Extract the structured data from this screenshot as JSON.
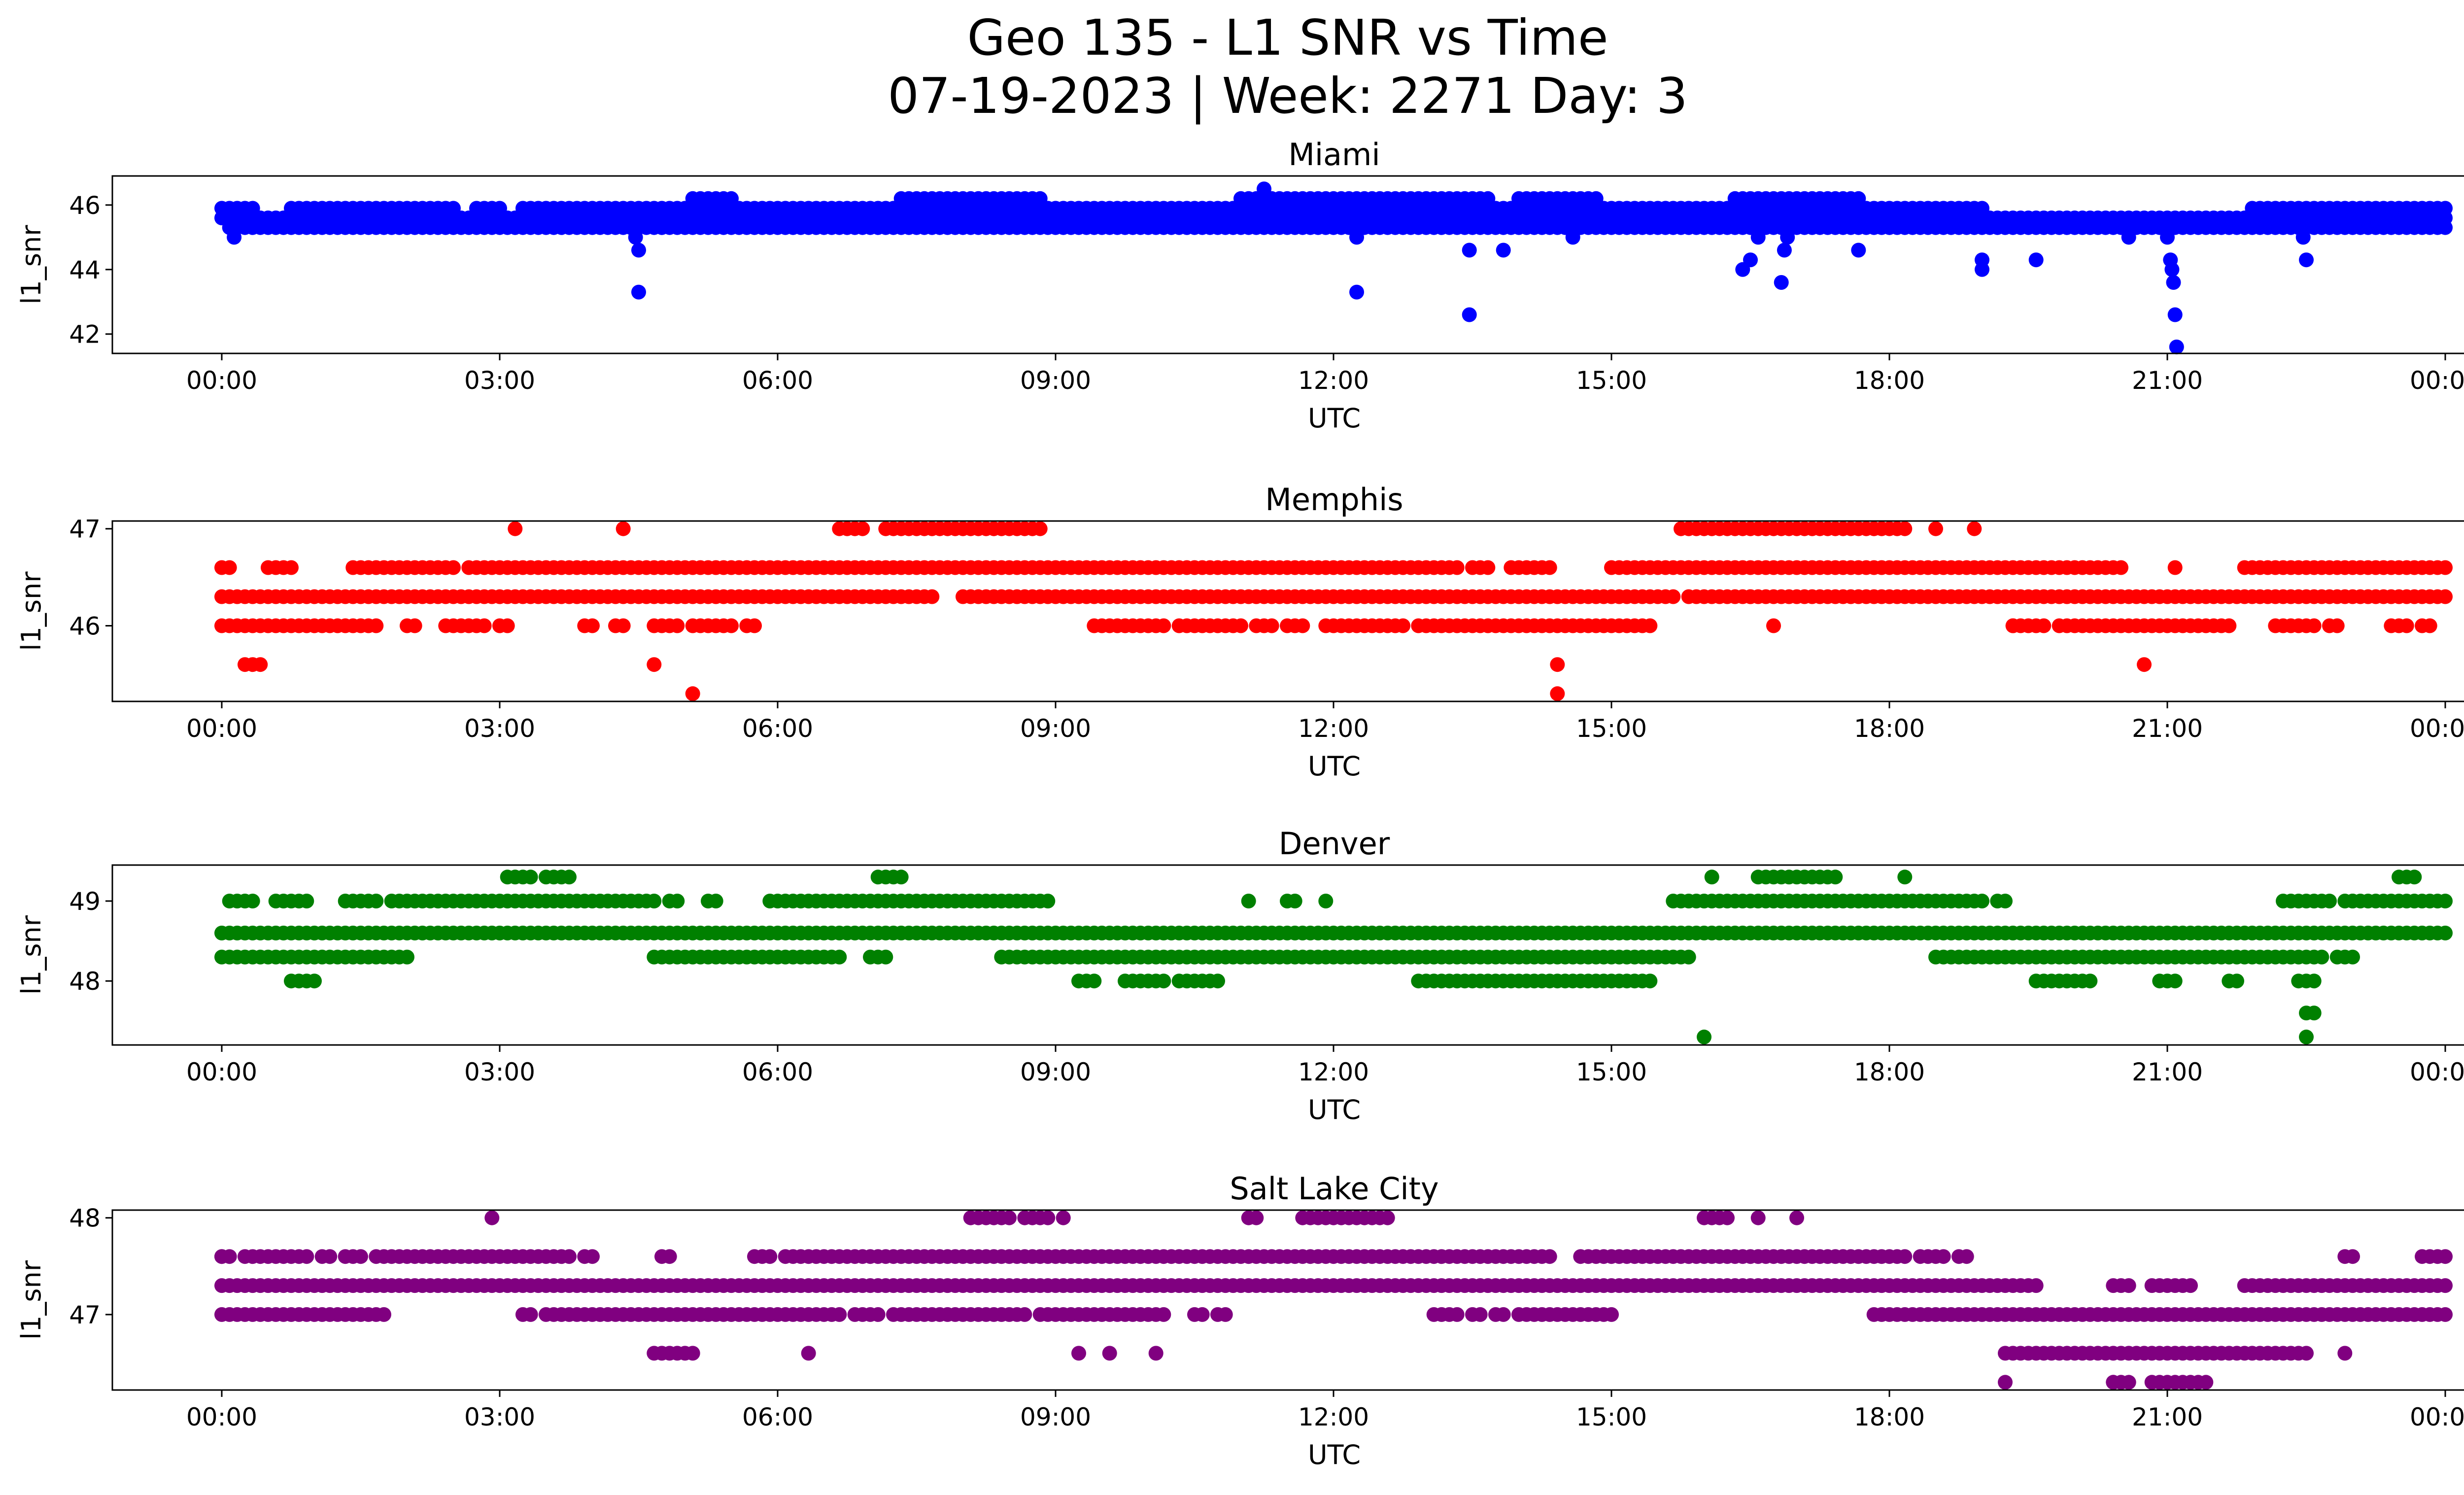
{
  "figure": {
    "title_line1": "Geo 135 - L1 SNR vs Time",
    "title_line2": "07-19-2023 | Week: 2271 Day: 3"
  },
  "chart_data": [
    {
      "type": "scatter",
      "title": "Miami",
      "xlabel": "UTC",
      "ylabel": "l1_snr",
      "color": "#0000ff",
      "xlim": [
        "2023-07-19T00:00",
        "2023-07-20T00:00"
      ],
      "xticks": [
        "00:00",
        "03:00",
        "06:00",
        "09:00",
        "12:00",
        "15:00",
        "18:00",
        "21:00",
        "00:00"
      ],
      "ylim": [
        41.4,
        46.9
      ],
      "yticks": [
        42,
        44,
        46
      ],
      "bands": [
        {
          "y": 45.3,
          "ranges": [
            [
              "00:05",
              "24:00"
            ]
          ]
        },
        {
          "y": 45.6,
          "ranges": [
            [
              "00:00",
              "24:00"
            ]
          ]
        },
        {
          "y": 45.9,
          "ranges": [
            [
              "00:00",
              "00:20"
            ],
            [
              "00:45",
              "02:30"
            ],
            [
              "02:45",
              "03:00"
            ],
            [
              "03:15",
              "19:00"
            ],
            [
              "21:55",
              "24:00"
            ]
          ]
        },
        {
          "y": 46.2,
          "ranges": [
            [
              "05:05",
              "05:30"
            ],
            [
              "07:20",
              "08:50"
            ],
            [
              "11:00",
              "13:40"
            ],
            [
              "14:00",
              "14:50"
            ],
            [
              "16:20",
              "17:40"
            ]
          ]
        }
      ],
      "outliers": [
        {
          "x": "00:08",
          "y": 45.0
        },
        {
          "x": "04:30",
          "y": 44.6
        },
        {
          "x": "04:30",
          "y": 43.3
        },
        {
          "x": "04:28",
          "y": 45.0
        },
        {
          "x": "04:45",
          "y": 45.3
        },
        {
          "x": "11:15",
          "y": 46.5
        },
        {
          "x": "12:15",
          "y": 45.0
        },
        {
          "x": "12:15",
          "y": 43.3
        },
        {
          "x": "13:28",
          "y": 44.6
        },
        {
          "x": "13:28",
          "y": 42.6
        },
        {
          "x": "13:50",
          "y": 44.6
        },
        {
          "x": "14:35",
          "y": 45.0
        },
        {
          "x": "16:25",
          "y": 44.0
        },
        {
          "x": "16:30",
          "y": 44.3
        },
        {
          "x": "16:35",
          "y": 45.0
        },
        {
          "x": "16:50",
          "y": 43.6
        },
        {
          "x": "16:52",
          "y": 44.6
        },
        {
          "x": "16:54",
          "y": 45.0
        },
        {
          "x": "17:40",
          "y": 44.6
        },
        {
          "x": "19:00",
          "y": 44.3
        },
        {
          "x": "19:00",
          "y": 44.0
        },
        {
          "x": "19:35",
          "y": 44.3
        },
        {
          "x": "20:35",
          "y": 45.0
        },
        {
          "x": "21:00",
          "y": 45.0
        },
        {
          "x": "21:02",
          "y": 44.3
        },
        {
          "x": "21:03",
          "y": 44.0
        },
        {
          "x": "21:04",
          "y": 43.6
        },
        {
          "x": "21:05",
          "y": 42.6
        },
        {
          "x": "21:06",
          "y": 41.6
        },
        {
          "x": "22:30",
          "y": 44.3
        },
        {
          "x": "22:28",
          "y": 45.0
        },
        {
          "x": "22:25",
          "y": 45.6
        },
        {
          "x": "18:00",
          "y": 45.3
        }
      ]
    },
    {
      "type": "scatter",
      "title": "Memphis",
      "xlabel": "UTC",
      "ylabel": "l1_snr",
      "color": "#ff0000",
      "xlim": [
        "2023-07-19T00:00",
        "2023-07-20T00:00"
      ],
      "xticks": [
        "00:00",
        "03:00",
        "06:00",
        "09:00",
        "12:00",
        "15:00",
        "18:00",
        "21:00",
        "00:00"
      ],
      "ylim": [
        45.22,
        47.08
      ],
      "yticks": [
        46,
        47
      ],
      "bands": [
        {
          "y": 46.3,
          "ranges": [
            [
              "00:00",
              "07:40"
            ],
            [
              "08:00",
              "15:40"
            ],
            [
              "15:50",
              "24:00"
            ]
          ]
        },
        {
          "y": 46.6,
          "ranges": [
            [
              "00:00",
              "00:05"
            ],
            [
              "00:30",
              "00:45"
            ],
            [
              "01:25",
              "02:30"
            ],
            [
              "02:40",
              "13:20"
            ],
            [
              "13:30",
              "13:40"
            ],
            [
              "13:55",
              "14:20"
            ],
            [
              "15:00",
              "20:30"
            ],
            [
              "21:50",
              "24:00"
            ]
          ]
        },
        {
          "y": 46.0,
          "ranges": [
            [
              "00:00",
              "01:40"
            ],
            [
              "02:00",
              "02:05"
            ],
            [
              "02:25",
              "02:50"
            ],
            [
              "03:00",
              "03:05"
            ],
            [
              "03:55",
              "04:00"
            ],
            [
              "04:15",
              "04:20"
            ],
            [
              "04:40",
              "04:55"
            ],
            [
              "05:05",
              "05:30"
            ],
            [
              "05:40",
              "05:45"
            ],
            [
              "09:25",
              "10:10"
            ],
            [
              "10:20",
              "11:00"
            ],
            [
              "11:10",
              "11:20"
            ],
            [
              "11:30",
              "11:40"
            ],
            [
              "11:55",
              "12:35"
            ],
            [
              "12:40",
              "12:45"
            ],
            [
              "12:55",
              "15:25"
            ],
            [
              "19:20",
              "19:40"
            ],
            [
              "19:50",
              "19:55"
            ],
            [
              "20:00",
              "20:50"
            ],
            [
              "20:55",
              "21:40"
            ],
            [
              "22:10",
              "22:15"
            ],
            [
              "22:20",
              "22:35"
            ],
            [
              "22:45",
              "22:50"
            ],
            [
              "23:25",
              "23:35"
            ],
            [
              "23:45",
              "23:50"
            ]
          ]
        },
        {
          "y": 47.0,
          "ranges": [
            [
              "06:40",
              "06:55"
            ],
            [
              "07:10",
              "08:50"
            ],
            [
              "15:45",
              "18:10"
            ]
          ]
        }
      ],
      "outliers": [
        {
          "x": "00:15",
          "y": 45.6
        },
        {
          "x": "00:20",
          "y": 45.6
        },
        {
          "x": "00:25",
          "y": 45.6
        },
        {
          "x": "03:10",
          "y": 47.0
        },
        {
          "x": "04:20",
          "y": 47.0
        },
        {
          "x": "04:40",
          "y": 45.6
        },
        {
          "x": "05:05",
          "y": 45.3
        },
        {
          "x": "14:25",
          "y": 45.6
        },
        {
          "x": "14:25",
          "y": 45.3
        },
        {
          "x": "16:45",
          "y": 46.0
        },
        {
          "x": "18:30",
          "y": 47.0
        },
        {
          "x": "18:55",
          "y": 47.0
        },
        {
          "x": "20:45",
          "y": 45.6
        },
        {
          "x": "21:05",
          "y": 46.6
        },
        {
          "x": "19:20",
          "y": 46.0
        },
        {
          "x": "16:30",
          "y": 46.3
        }
      ]
    },
    {
      "type": "scatter",
      "title": "Denver",
      "xlabel": "UTC",
      "ylabel": "l1_snr",
      "color": "#008000",
      "xlim": [
        "2023-07-19T00:00",
        "2023-07-20T00:00"
      ],
      "xticks": [
        "00:00",
        "03:00",
        "06:00",
        "09:00",
        "12:00",
        "15:00",
        "18:00",
        "21:00",
        "00:00"
      ],
      "ylim": [
        47.2,
        49.45
      ],
      "yticks": [
        48,
        49
      ],
      "bands": [
        {
          "y": 48.6,
          "ranges": [
            [
              "00:00",
              "24:00"
            ]
          ]
        },
        {
          "y": 48.3,
          "ranges": [
            [
              "00:00",
              "02:00"
            ],
            [
              "04:40",
              "06:40"
            ],
            [
              "07:00",
              "07:10"
            ],
            [
              "08:25",
              "08:40"
            ],
            [
              "08:45",
              "15:50"
            ],
            [
              "18:30",
              "22:40"
            ],
            [
              "22:50",
              "23:00"
            ]
          ]
        },
        {
          "y": 49.0,
          "ranges": [
            [
              "00:05",
              "00:20"
            ],
            [
              "00:35",
              "00:55"
            ],
            [
              "01:20",
              "01:40"
            ],
            [
              "01:50",
              "04:40"
            ],
            [
              "04:50",
              "04:55"
            ],
            [
              "05:15",
              "05:20"
            ],
            [
              "05:55",
              "06:25"
            ],
            [
              "06:25",
              "08:55"
            ],
            [
              "15:40",
              "19:00"
            ],
            [
              "19:10",
              "19:15"
            ],
            [
              "22:15",
              "22:20"
            ],
            [
              "22:25",
              "22:35"
            ],
            [
              "22:40",
              "22:45"
            ],
            [
              "22:55",
              "23:00"
            ],
            [
              "23:00",
              "24:00"
            ]
          ]
        },
        {
          "y": 48.0,
          "ranges": [
            [
              "00:45",
              "01:00"
            ],
            [
              "09:20",
              "09:25"
            ],
            [
              "09:45",
              "10:10"
            ],
            [
              "10:20",
              "10:45"
            ],
            [
              "12:55",
              "13:20"
            ],
            [
              "13:25",
              "15:25"
            ],
            [
              "19:35",
              "19:55"
            ],
            [
              "20:00",
              "20:10"
            ],
            [
              "20:55",
              "21:05"
            ],
            [
              "21:40",
              "21:45"
            ],
            [
              "22:25",
              "22:35"
            ]
          ]
        },
        {
          "y": 49.3,
          "ranges": [
            [
              "03:05",
              "03:20"
            ],
            [
              "03:30",
              "03:45"
            ],
            [
              "07:05",
              "07:20"
            ],
            [
              "16:35",
              "17:25"
            ],
            [
              "23:30",
              "23:40"
            ]
          ]
        }
      ],
      "outliers": [
        {
          "x": "11:05",
          "y": 49.0
        },
        {
          "x": "11:30",
          "y": 49.0
        },
        {
          "x": "11:35",
          "y": 49.0
        },
        {
          "x": "11:55",
          "y": 49.0
        },
        {
          "x": "16:00",
          "y": 47.3
        },
        {
          "x": "16:05",
          "y": 49.3
        },
        {
          "x": "18:10",
          "y": 49.3
        },
        {
          "x": "22:30",
          "y": 47.6
        },
        {
          "x": "22:35",
          "y": 47.6
        },
        {
          "x": "22:30",
          "y": 47.3
        },
        {
          "x": "09:15",
          "y": 48.0
        }
      ]
    },
    {
      "type": "scatter",
      "title": "Salt Lake City",
      "xlabel": "UTC",
      "ylabel": "l1_snr",
      "color": "#800080",
      "xlim": [
        "2023-07-19T00:00",
        "2023-07-20T00:00"
      ],
      "xticks": [
        "00:00",
        "03:00",
        "06:00",
        "09:00",
        "12:00",
        "15:00",
        "18:00",
        "21:00",
        "00:00"
      ],
      "ylim": [
        46.22,
        48.08
      ],
      "yticks": [
        47,
        48
      ],
      "bands": [
        {
          "y": 47.3,
          "ranges": [
            [
              "00:00",
              "19:20"
            ],
            [
              "19:25",
              "19:35"
            ],
            [
              "20:25",
              "20:35"
            ],
            [
              "20:50",
              "21:15"
            ],
            [
              "21:50",
              "24:00"
            ]
          ]
        },
        {
          "y": 47.6,
          "ranges": [
            [
              "00:00",
              "00:05"
            ],
            [
              "00:15",
              "00:55"
            ],
            [
              "01:05",
              "01:10"
            ],
            [
              "01:20",
              "01:30"
            ],
            [
              "01:40",
              "03:45"
            ],
            [
              "03:55",
              "04:00"
            ],
            [
              "04:45",
              "04:50"
            ],
            [
              "05:45",
              "05:55"
            ],
            [
              "06:05",
              "06:15"
            ],
            [
              "06:20",
              "14:10"
            ],
            [
              "14:15",
              "14:20"
            ],
            [
              "14:40",
              "18:10"
            ],
            [
              "18:20",
              "18:35"
            ],
            [
              "18:45",
              "18:50"
            ],
            [
              "22:55",
              "23:00"
            ],
            [
              "23:45",
              "24:00"
            ]
          ]
        },
        {
          "y": 47.0,
          "ranges": [
            [
              "00:00",
              "01:45"
            ],
            [
              "03:15",
              "03:20"
            ],
            [
              "03:30",
              "06:40"
            ],
            [
              "06:50",
              "07:05"
            ],
            [
              "07:15",
              "08:40"
            ],
            [
              "08:50",
              "10:10"
            ],
            [
              "10:30",
              "10:35"
            ],
            [
              "10:45",
              "10:50"
            ],
            [
              "13:05",
              "13:20"
            ],
            [
              "13:30",
              "13:35"
            ],
            [
              "13:45",
              "13:50"
            ],
            [
              "14:00",
              "15:00"
            ],
            [
              "17:50",
              "24:00"
            ]
          ]
        },
        {
          "y": 46.6,
          "ranges": [
            [
              "04:40",
              "05:05"
            ],
            [
              "19:15",
              "22:30"
            ]
          ]
        },
        {
          "y": 46.3,
          "ranges": [
            [
              "20:25",
              "20:35"
            ],
            [
              "20:50",
              "21:25"
            ]
          ]
        },
        {
          "y": 48.0,
          "ranges": [
            [
              "08:05",
              "08:30"
            ],
            [
              "08:40",
              "08:55"
            ],
            [
              "11:05",
              "11:10"
            ],
            [
              "11:40",
              "11:55"
            ],
            [
              "12:00",
              "12:35"
            ],
            [
              "16:00",
              "16:15"
            ]
          ]
        }
      ],
      "outliers": [
        {
          "x": "02:55",
          "y": 48.0
        },
        {
          "x": "06:20",
          "y": 46.6
        },
        {
          "x": "09:05",
          "y": 48.0
        },
        {
          "x": "09:15",
          "y": 46.6
        },
        {
          "x": "09:35",
          "y": 46.6
        },
        {
          "x": "10:05",
          "y": 46.6
        },
        {
          "x": "16:35",
          "y": 48.0
        },
        {
          "x": "17:00",
          "y": 48.0
        },
        {
          "x": "19:15",
          "y": 46.3
        },
        {
          "x": "20:25",
          "y": 46.3
        },
        {
          "x": "22:55",
          "y": 46.6
        },
        {
          "x": "00:00",
          "y": 47.6
        }
      ]
    }
  ]
}
